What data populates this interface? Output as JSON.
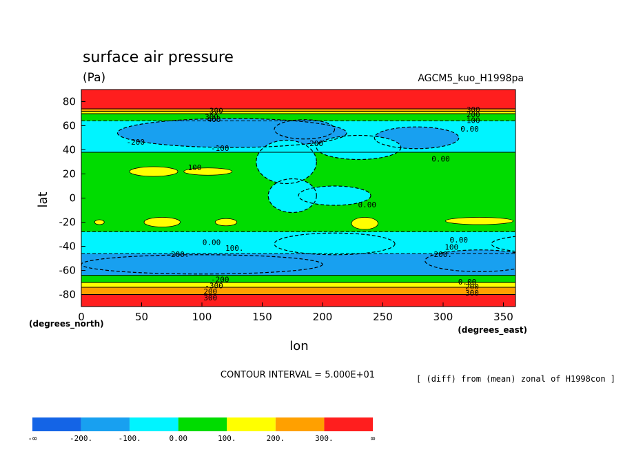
{
  "chart_data": {
    "type": "heatmap",
    "title": "surface air pressure",
    "subtitle": "(Pa)",
    "run_label": "AGCM5_kuo_H1998pa",
    "xlabel": "lon",
    "ylabel": "lat",
    "x_unit_label": "(degrees_east)",
    "y_unit_label": "(degrees_north)",
    "xlim": [
      0,
      360
    ],
    "ylim": [
      -90,
      90
    ],
    "x_ticks": [
      "0",
      "50",
      "100",
      "150",
      "200",
      "250",
      "300",
      "350"
    ],
    "x_tick_values": [
      0,
      50,
      100,
      150,
      200,
      250,
      300,
      350
    ],
    "y_ticks": [
      "80",
      "60",
      "40",
      "20",
      "0",
      "-20",
      "-40",
      "-60",
      "-80"
    ],
    "y_tick_values": [
      80,
      60,
      40,
      20,
      0,
      -20,
      -40,
      -60,
      -80
    ],
    "contour_interval_label": "CONTOUR INTERVAL = 5.000E+01",
    "footnote": "[ (diff) from (mean) zonal of H1998con ]",
    "colorbar": {
      "colors": [
        "#1464e6",
        "#18a0f0",
        "#00f4ff",
        "#00dc00",
        "#ffff00",
        "#ffa000",
        "#ff1e1e"
      ],
      "labels": [
        "-∞",
        "-200.",
        "-100.",
        "0.00",
        "100.",
        "200.",
        "300.",
        "∞"
      ]
    },
    "zonal_bands": [
      {
        "lat_from": 74,
        "lat_to": 90,
        "level": 6
      },
      {
        "lat_from": 72,
        "lat_to": 74,
        "level": 5
      },
      {
        "lat_from": 70,
        "lat_to": 72,
        "level": 4
      },
      {
        "lat_from": 64,
        "lat_to": 70,
        "level": 3
      },
      {
        "lat_from": 38,
        "lat_to": 64,
        "level": 2
      },
      {
        "lat_from": -28,
        "lat_to": 38,
        "level": 3
      },
      {
        "lat_from": -46,
        "lat_to": -28,
        "level": 2
      },
      {
        "lat_from": -64,
        "lat_to": -46,
        "level": 1
      },
      {
        "lat_from": -70,
        "lat_to": -64,
        "level": 3
      },
      {
        "lat_from": -74,
        "lat_to": -70,
        "level": 4
      },
      {
        "lat_from": -80,
        "lat_to": -74,
        "level": 5
      },
      {
        "lat_from": -90,
        "lat_to": -80,
        "level": 6
      }
    ],
    "anomaly_blobs": [
      {
        "lon": 125,
        "lat": 54,
        "rlon": 95,
        "rlat": 12,
        "level": 1
      },
      {
        "lon": 185,
        "lat": 57,
        "rlon": 25,
        "rlat": 8,
        "level": 1
      },
      {
        "lon": 278,
        "lat": 50,
        "rlon": 35,
        "rlat": 9,
        "level": 1
      },
      {
        "lon": 230,
        "lat": 42,
        "rlon": 35,
        "rlat": 10,
        "level": 2
      },
      {
        "lon": 170,
        "lat": 30,
        "rlon": 25,
        "rlat": 18,
        "level": 2
      },
      {
        "lon": 175,
        "lat": 2,
        "rlon": 20,
        "rlat": 14,
        "level": 2
      },
      {
        "lon": 210,
        "lat": 2,
        "rlon": 30,
        "rlat": 8,
        "level": 2
      },
      {
        "lon": 60,
        "lat": 22,
        "rlon": 20,
        "rlat": 4,
        "level": 4
      },
      {
        "lon": 105,
        "lat": 22,
        "rlon": 20,
        "rlat": 3,
        "level": 4
      },
      {
        "lon": 67,
        "lat": -20,
        "rlon": 15,
        "rlat": 4,
        "level": 4
      },
      {
        "lon": 120,
        "lat": -20,
        "rlon": 9,
        "rlat": 3,
        "level": 4
      },
      {
        "lon": 15,
        "lat": -20,
        "rlon": 4,
        "rlat": 2,
        "level": 4
      },
      {
        "lon": 235,
        "lat": -21,
        "rlon": 11,
        "rlat": 5,
        "level": 4
      },
      {
        "lon": 330,
        "lat": -19,
        "rlon": 28,
        "rlat": 3,
        "level": 4
      },
      {
        "lon": 210,
        "lat": -38,
        "rlon": 50,
        "rlat": 9,
        "level": 2
      },
      {
        "lon": 395,
        "lat": -38,
        "rlon": 55,
        "rlat": 8,
        "level": 2
      },
      {
        "lon": 100,
        "lat": -55,
        "rlon": 100,
        "rlat": 8,
        "level": 1
      },
      {
        "lon": 330,
        "lat": -52,
        "rlon": 45,
        "rlat": 9,
        "level": 1
      }
    ],
    "contour_labels": [
      {
        "lon": 110,
        "lat": 72,
        "text": "-300"
      },
      {
        "lon": 108,
        "lat": 67,
        "text": "300"
      },
      {
        "lon": 110,
        "lat": 65,
        "text": "400"
      },
      {
        "lon": 45,
        "lat": 46,
        "text": "-200"
      },
      {
        "lon": 193,
        "lat": 45,
        "text": "-200"
      },
      {
        "lon": 115,
        "lat": 41,
        "text": "-100"
      },
      {
        "lon": 94,
        "lat": 25,
        "text": "100"
      },
      {
        "lon": 325,
        "lat": 73,
        "text": "300"
      },
      {
        "lon": 325,
        "lat": 69,
        "text": "200"
      },
      {
        "lon": 325,
        "lat": 64,
        "text": "100"
      },
      {
        "lon": 322,
        "lat": 57,
        "text": "0.00"
      },
      {
        "lon": 298,
        "lat": 32,
        "text": "0.00"
      },
      {
        "lon": 237,
        "lat": -6,
        "text": "0.00"
      },
      {
        "lon": 108,
        "lat": -37,
        "text": "0.00"
      },
      {
        "lon": 127,
        "lat": -42,
        "text": "100."
      },
      {
        "lon": 80,
        "lat": -47,
        "text": "-200."
      },
      {
        "lon": 313,
        "lat": -35,
        "text": "0.00"
      },
      {
        "lon": 307,
        "lat": -41,
        "text": "100"
      },
      {
        "lon": 298,
        "lat": -47,
        "text": "-200."
      },
      {
        "lon": 115,
        "lat": -68,
        "text": "-200"
      },
      {
        "lon": 110,
        "lat": -73,
        "text": "-300"
      },
      {
        "lon": 107,
        "lat": -78,
        "text": "200"
      },
      {
        "lon": 107,
        "lat": -83,
        "text": "300"
      },
      {
        "lon": 320,
        "lat": -70,
        "text": "0.00"
      },
      {
        "lon": 324,
        "lat": -74,
        "text": "200"
      },
      {
        "lon": 324,
        "lat": -79,
        "text": "300"
      }
    ]
  }
}
